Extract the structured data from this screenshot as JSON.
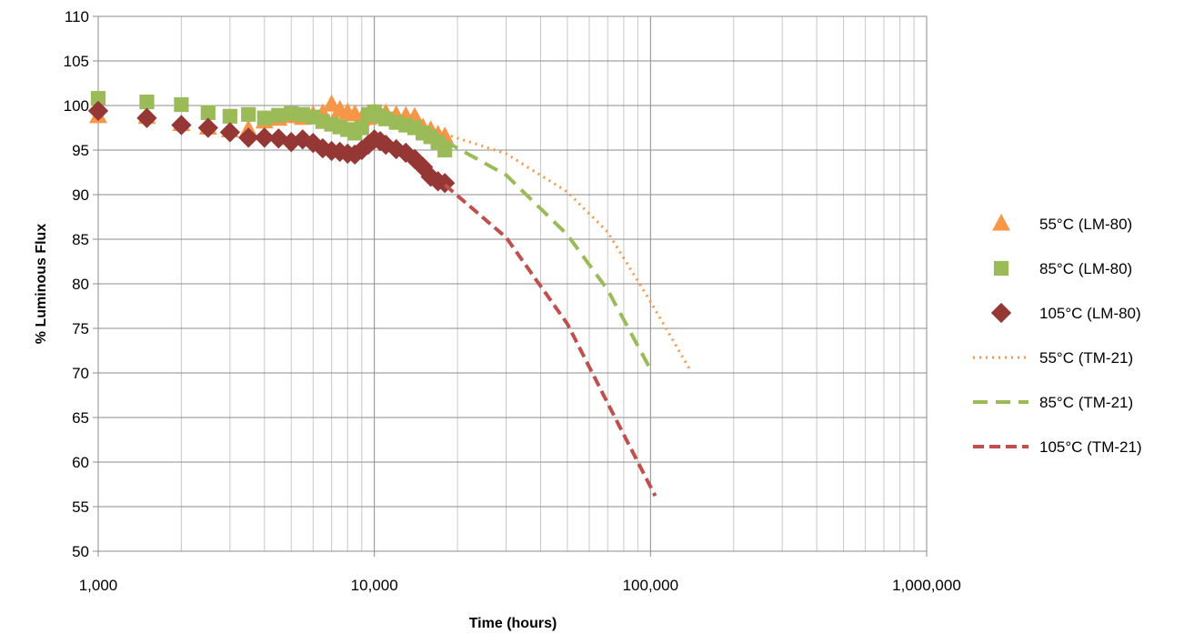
{
  "chart_data": {
    "type": "scatter",
    "title": "",
    "xlabel": "Time (hours)",
    "ylabel": "% Luminous Flux",
    "x_scale": "log",
    "xlim": [
      1000,
      1000000
    ],
    "ylim": [
      50,
      110
    ],
    "grid": true,
    "legend_position": "right",
    "x_ticks": [
      1000,
      10000,
      100000,
      1000000
    ],
    "x_tick_labels": [
      "1,000",
      "10,000",
      "100,000",
      "1,000,000"
    ],
    "y_ticks": [
      50,
      55,
      60,
      65,
      70,
      75,
      80,
      85,
      90,
      95,
      100,
      105,
      110
    ],
    "y_tick_labels": [
      "50",
      "55",
      "60",
      "65",
      "70",
      "75",
      "80",
      "85",
      "90",
      "95",
      "100",
      "105",
      "110"
    ],
    "series": [
      {
        "name": "55°C (LM-80)",
        "kind": "marker",
        "marker": "triangle",
        "color": "#F79646",
        "points": [
          [
            1000,
            98.8
          ],
          [
            1500,
            98.7
          ],
          [
            2000,
            97.9
          ],
          [
            2500,
            97.5
          ],
          [
            3000,
            97.2
          ],
          [
            3500,
            97.3
          ],
          [
            4000,
            98.2
          ],
          [
            4500,
            98.5
          ],
          [
            5000,
            98.8
          ],
          [
            5500,
            98.6
          ],
          [
            6000,
            98.9
          ],
          [
            6500,
            99.1
          ],
          [
            7000,
            100.1
          ],
          [
            7500,
            99.5
          ],
          [
            8000,
            99.2
          ],
          [
            8500,
            99.0
          ],
          [
            9000,
            98.5
          ],
          [
            9500,
            98.6
          ],
          [
            10000,
            99.2
          ],
          [
            10500,
            99.0
          ],
          [
            11000,
            99.1
          ],
          [
            12000,
            98.9
          ],
          [
            13000,
            98.8
          ],
          [
            14000,
            98.7
          ],
          [
            15000,
            97.5
          ],
          [
            16000,
            97.2
          ],
          [
            17000,
            96.7
          ],
          [
            18000,
            96.5
          ]
        ]
      },
      {
        "name": "85°C (LM-80)",
        "kind": "marker",
        "marker": "square",
        "color": "#9BBB59",
        "points": [
          [
            1000,
            100.8
          ],
          [
            1500,
            100.4
          ],
          [
            2000,
            100.1
          ],
          [
            2500,
            99.2
          ],
          [
            3000,
            98.8
          ],
          [
            3500,
            99.0
          ],
          [
            4000,
            98.6
          ],
          [
            4500,
            98.9
          ],
          [
            5000,
            99.1
          ],
          [
            5500,
            99.0
          ],
          [
            6000,
            98.7
          ],
          [
            6500,
            98.2
          ],
          [
            7000,
            97.9
          ],
          [
            7500,
            97.6
          ],
          [
            8000,
            97.3
          ],
          [
            8500,
            96.9
          ],
          [
            9000,
            97.5
          ],
          [
            9500,
            99.0
          ],
          [
            10000,
            99.3
          ],
          [
            10500,
            98.8
          ],
          [
            11000,
            98.5
          ],
          [
            12000,
            98.1
          ],
          [
            13000,
            97.8
          ],
          [
            14000,
            97.5
          ],
          [
            15000,
            96.9
          ],
          [
            16000,
            96.5
          ],
          [
            17000,
            95.9
          ],
          [
            18000,
            95.0
          ]
        ]
      },
      {
        "name": "105°C (LM-80)",
        "kind": "marker",
        "marker": "diamond",
        "color": "#953735",
        "points": [
          [
            1000,
            99.4
          ],
          [
            1500,
            98.6
          ],
          [
            2000,
            97.8
          ],
          [
            2500,
            97.5
          ],
          [
            3000,
            97.0
          ],
          [
            3500,
            96.4
          ],
          [
            4000,
            96.4
          ],
          [
            4500,
            96.3
          ],
          [
            5000,
            95.9
          ],
          [
            5500,
            96.2
          ],
          [
            6000,
            95.8
          ],
          [
            6500,
            95.2
          ],
          [
            7000,
            94.9
          ],
          [
            7500,
            94.8
          ],
          [
            8000,
            94.6
          ],
          [
            8500,
            94.5
          ],
          [
            9000,
            95.0
          ],
          [
            9500,
            95.6
          ],
          [
            10000,
            96.2
          ],
          [
            10500,
            96.0
          ],
          [
            11000,
            95.6
          ],
          [
            12000,
            95.1
          ],
          [
            13000,
            94.7
          ],
          [
            14000,
            94.0
          ],
          [
            15000,
            93.1
          ],
          [
            16000,
            92.0
          ],
          [
            17000,
            91.5
          ],
          [
            18000,
            91.3
          ]
        ]
      },
      {
        "name": "55°C (TM-21)",
        "kind": "line",
        "dash": "dot",
        "color": "#F79646",
        "points": [
          [
            18000,
            96.8
          ],
          [
            30000,
            94.6
          ],
          [
            50000,
            90.3
          ],
          [
            70000,
            85.8
          ],
          [
            100000,
            78.0
          ],
          [
            140000,
            70.2
          ]
        ]
      },
      {
        "name": "85°C (TM-21)",
        "kind": "line",
        "dash": "longdash",
        "color": "#9BBB59",
        "points": [
          [
            18000,
            96.0
          ],
          [
            30000,
            92.2
          ],
          [
            50000,
            85.5
          ],
          [
            70000,
            79.3
          ],
          [
            100000,
            70.4
          ]
        ]
      },
      {
        "name": "105°C (TM-21)",
        "kind": "line",
        "dash": "dash",
        "color": "#C0504D",
        "points": [
          [
            18000,
            91.1
          ],
          [
            30000,
            85.2
          ],
          [
            50000,
            75.5
          ],
          [
            70000,
            66.6
          ],
          [
            104000,
            56.2
          ]
        ]
      }
    ]
  }
}
